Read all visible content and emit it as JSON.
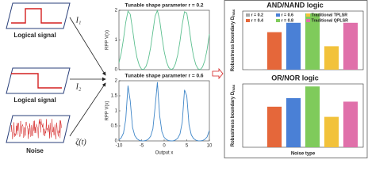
{
  "diagram": {
    "inputs": [
      {
        "label": "Logical signal",
        "symbol": "I₁"
      },
      {
        "label": "Logical signal",
        "symbol": "I₂"
      },
      {
        "label": "Noise",
        "symbol": "ζ(t)"
      }
    ]
  },
  "chart_data": [
    {
      "type": "line",
      "title": "Tunable shape parameter r = 0.2",
      "ylabel": "RPP V(x)",
      "x": [
        -10,
        -9.5,
        -9,
        -8.5,
        -8,
        -7.5,
        -7,
        -6.5,
        -6,
        -5.5,
        -5,
        -4.5,
        -4,
        -3.5,
        -3,
        -2.5,
        -2,
        -1.5,
        -1,
        -0.5,
        0,
        0.5,
        1,
        1.5,
        2,
        2.5,
        3,
        3.5,
        4,
        4.5,
        5,
        5.5,
        6,
        6.5,
        7,
        7.5,
        8,
        8.5,
        9,
        9.5,
        10
      ],
      "series": [
        {
          "color": "#5cbf8f",
          "values": [
            0.232,
            0.553,
            1.033,
            1.596,
            1.975,
            1.866,
            1.365,
            0.815,
            0.401,
            0.142,
            0.018,
            0.01,
            0.116,
            0.352,
            0.742,
            1.277,
            1.806,
            1.993,
            1.675,
            1.116,
            0.615,
            0.271,
            0.074,
            0.001,
            0.041,
            0.201,
            0.501,
            0.961,
            1.525,
            1.951,
            1.91,
            1.441,
            0.882,
            0.446,
            0.168,
            0.028,
            0.005,
            0.095,
            0.312,
            0.681,
            1.202
          ]
        }
      ],
      "xlim": [
        -10,
        10
      ],
      "ylim": [
        0,
        2
      ],
      "yticks": [
        0,
        1,
        2
      ]
    },
    {
      "type": "line",
      "title": "Tunable shape parameter r = 0.6",
      "ylabel": "RPP V(x)",
      "xlabel": "Output x",
      "x": [
        -10,
        -9.5,
        -9,
        -8.5,
        -8,
        -7.5,
        -7,
        -6.5,
        -6,
        -5.5,
        -5,
        -4.5,
        -4,
        -3.5,
        -3,
        -2.5,
        -2,
        -1.5,
        -1,
        -0.5,
        0,
        0.5,
        1,
        1.5,
        2,
        2.5,
        3,
        3.5,
        4,
        4.5,
        5,
        5.5,
        6,
        6.5,
        7,
        7.5,
        8,
        8.5,
        9,
        9.5,
        10
      ],
      "series": [
        {
          "color": "#3f86c8",
          "values": [
            0.036,
            0.102,
            0.261,
            0.715,
            1.837,
            1.323,
            0.45,
            0.176,
            0.068,
            0.021,
            0.003,
            0.001,
            0.017,
            0.058,
            0.153,
            0.398,
            1.135,
            1.953,
            0.84,
            0.301,
            0.118,
            0.043,
            0.011,
            0.0,
            0.006,
            0.031,
            0.09,
            0.23,
            0.622,
            1.698,
            1.498,
            0.532,
            0.2,
            0.078,
            0.026,
            0.004,
            0.001,
            0.014,
            0.051,
            0.135,
            0.349
          ]
        }
      ],
      "xlim": [
        -10,
        10
      ],
      "ylim": [
        0,
        2
      ],
      "xticks": [
        -10,
        -5,
        0,
        5,
        10
      ],
      "yticks": [
        0,
        0.5,
        1,
        1.5,
        2
      ]
    },
    {
      "type": "bar",
      "title": "AND/NAND logic",
      "ylabel": "Robustness boundary D",
      "ylabel_sub": "max",
      "categories": [
        null
      ],
      "legend": "upper left",
      "series": [
        {
          "name": "r = 0.2",
          "color": "#a6a6a6",
          "values": [
            0.01
          ]
        },
        {
          "name": "r = 0.4",
          "color": "#e5673a",
          "values": [
            0.8
          ]
        },
        {
          "name": "r = 0.6",
          "color": "#4a80d6",
          "values": [
            1.0
          ]
        },
        {
          "name": "r = 0.8",
          "color": "#7fcb5b",
          "values": [
            1.2
          ]
        },
        {
          "name": "Traditional TPLSR",
          "color": "#f2c23b",
          "values": [
            0.5
          ]
        },
        {
          "name": "Traditional QPLSR",
          "color": "#e070aa",
          "values": [
            1.0
          ]
        }
      ],
      "ylim": [
        0,
        1.25
      ]
    },
    {
      "type": "bar",
      "title": "OR/NOR logic",
      "ylabel": "Robustness boundary D",
      "ylabel_sub": "max",
      "xlabel": "Noise type",
      "categories": [
        null
      ],
      "series": [
        {
          "color": "#a6a6a6",
          "values": [
            0.01
          ]
        },
        {
          "color": "#e5673a",
          "values": [
            0.8
          ]
        },
        {
          "color": "#4a80d6",
          "values": [
            0.97
          ]
        },
        {
          "color": "#7fcb5b",
          "values": [
            1.2
          ]
        },
        {
          "color": "#f2c23b",
          "values": [
            0.6
          ]
        },
        {
          "color": "#e070aa",
          "values": [
            0.9
          ]
        }
      ],
      "ylim": [
        0,
        1.25
      ]
    }
  ]
}
